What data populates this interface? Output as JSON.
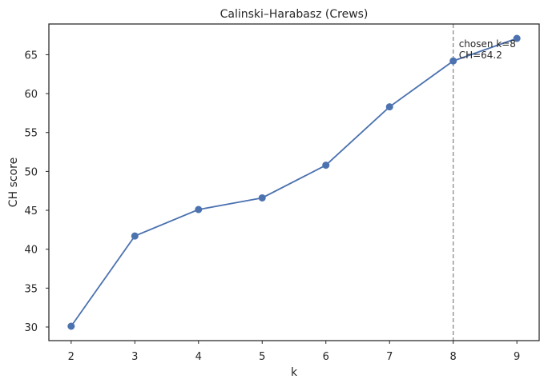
{
  "chart_data": {
    "type": "line",
    "title": "Calinski–Harabasz (Crews)",
    "xlabel": "k",
    "ylabel": "CH score",
    "x": [
      2,
      3,
      4,
      5,
      6,
      7,
      8,
      9
    ],
    "series": [
      {
        "values": [
          30.1,
          41.7,
          45.1,
          46.6,
          50.8,
          58.3,
          64.2,
          67.1
        ],
        "color": "#4c72b0"
      }
    ],
    "xticks": [
      2,
      3,
      4,
      5,
      6,
      7,
      8,
      9
    ],
    "yticks": [
      30,
      35,
      40,
      45,
      50,
      55,
      60,
      65
    ],
    "xlim": [
      1.65,
      9.35
    ],
    "ylim": [
      28.25,
      68.95
    ],
    "grid": false,
    "vline": {
      "x": 8,
      "color": "#808080",
      "style": "dashed"
    },
    "annotation": {
      "x": 8,
      "y": 64.2,
      "lines": [
        "chosen k=8",
        "CH=64.2"
      ]
    }
  }
}
